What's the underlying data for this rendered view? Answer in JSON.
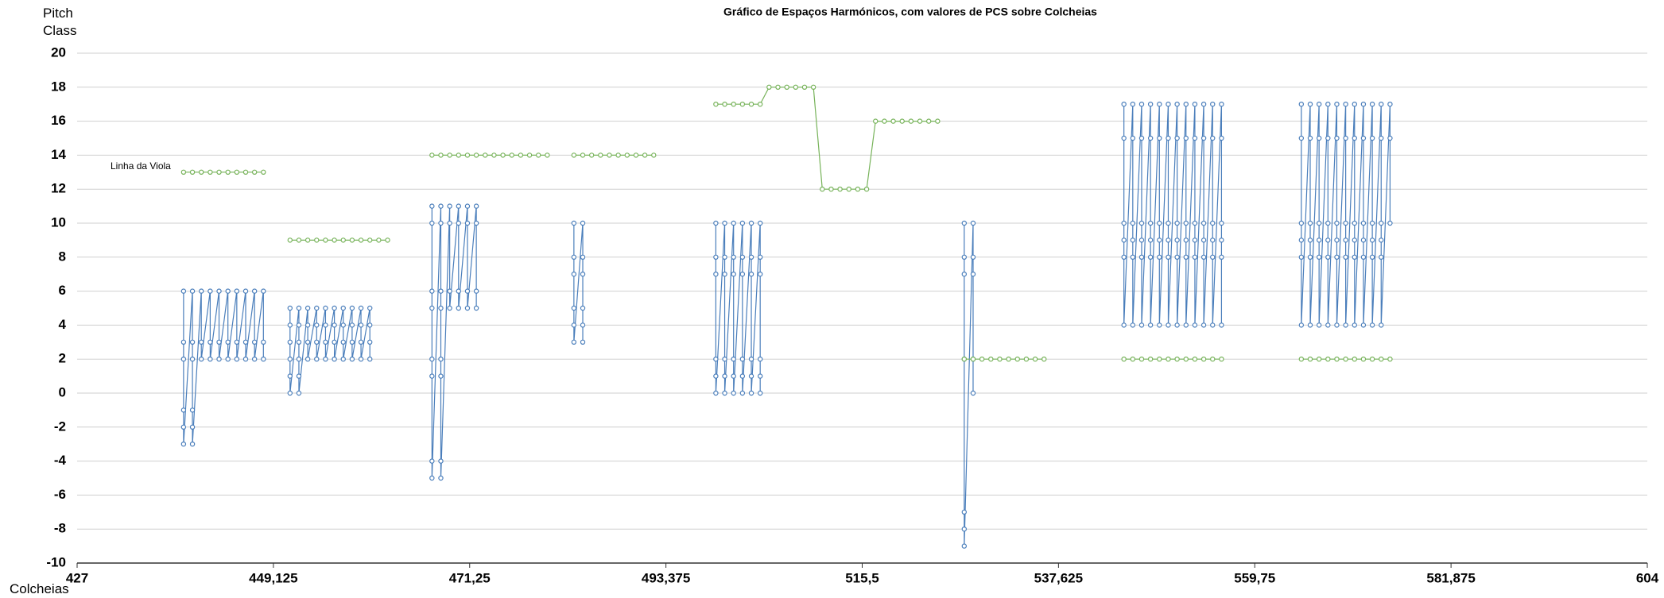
{
  "chart_data": {
    "type": "line",
    "title": "Gráfico de Espaços Harmónicos, com valores de PCS sobre Colcheias",
    "y_label": "Pitch Class",
    "x_label": "Colcheias",
    "xlim": [
      427,
      604
    ],
    "xticks": [
      427,
      {
        "value": 449.125,
        "label": "449,125"
      },
      {
        "value": 471.25,
        "label": "471,25"
      },
      {
        "value": 493.375,
        "label": "493,375"
      },
      {
        "value": 515.5,
        "label": "515,5"
      },
      {
        "value": 537.625,
        "label": "537,625"
      },
      {
        "value": 559.75,
        "label": "559,75"
      },
      {
        "value": 581.875,
        "label": "581,875"
      },
      604
    ],
    "ylim": [
      -10,
      20
    ],
    "yticks": [
      -10,
      -8,
      -6,
      -4,
      -2,
      0,
      2,
      4,
      6,
      8,
      10,
      12,
      14,
      16,
      18,
      20
    ],
    "grid": true,
    "series": [
      {
        "color": "#4a7ebb",
        "x": [
          439,
          439,
          439,
          439,
          439,
          439,
          440,
          440,
          440,
          440,
          440,
          440,
          441,
          441,
          441,
          442,
          442,
          442,
          443,
          443,
          443,
          444,
          444,
          444,
          445,
          445,
          445,
          446,
          446,
          446,
          447,
          447,
          447,
          448,
          448,
          448,
          null,
          451,
          451,
          451,
          451,
          451,
          451,
          452,
          452,
          452,
          452,
          452,
          452,
          453,
          453,
          453,
          453,
          454,
          454,
          454,
          454,
          455,
          455,
          455,
          455,
          456,
          456,
          456,
          456,
          457,
          457,
          457,
          457,
          458,
          458,
          458,
          458,
          459,
          459,
          459,
          459,
          460,
          460,
          460,
          460,
          null,
          467,
          467,
          467,
          467,
          467,
          467,
          467,
          467,
          468,
          468,
          468,
          468,
          468,
          468,
          468,
          468,
          469,
          469,
          469,
          469,
          470,
          470,
          470,
          470,
          471,
          471,
          471,
          471,
          472,
          472,
          472,
          472,
          null,
          483,
          483,
          483,
          483,
          483,
          483,
          484,
          484,
          484,
          484,
          484,
          484,
          null,
          499,
          499,
          499,
          499,
          499,
          499,
          500,
          500,
          500,
          500,
          500,
          500,
          501,
          501,
          501,
          501,
          501,
          501,
          502,
          502,
          502,
          502,
          502,
          502,
          503,
          503,
          503,
          503,
          503,
          503,
          504,
          504,
          504,
          504,
          504,
          504,
          null,
          527,
          527,
          527,
          527,
          527,
          527,
          527,
          528,
          528,
          528,
          528,
          528,
          null,
          545,
          545,
          545,
          545,
          545,
          545,
          546,
          546,
          546,
          546,
          546,
          546,
          547,
          547,
          547,
          547,
          547,
          547,
          548,
          548,
          548,
          548,
          548,
          548,
          549,
          549,
          549,
          549,
          549,
          549,
          550,
          550,
          550,
          550,
          550,
          550,
          551,
          551,
          551,
          551,
          551,
          551,
          552,
          552,
          552,
          552,
          552,
          552,
          553,
          553,
          553,
          553,
          553,
          553,
          554,
          554,
          554,
          554,
          554,
          554,
          555,
          555,
          555,
          555,
          555,
          555,
          556,
          556,
          556,
          556,
          556,
          556,
          null,
          565,
          565,
          565,
          565,
          565,
          565,
          566,
          566,
          566,
          566,
          566,
          566,
          567,
          567,
          567,
          567,
          567,
          567,
          568,
          568,
          568,
          568,
          568,
          568,
          569,
          569,
          569,
          569,
          569,
          569,
          570,
          570,
          570,
          570,
          570,
          570,
          571,
          571,
          571,
          571,
          571,
          571,
          572,
          572,
          572,
          572,
          572,
          572,
          573,
          573,
          573,
          573,
          573,
          573,
          574,
          574,
          574,
          574,
          574,
          574,
          575,
          575,
          575
        ],
        "values": [
          6,
          3,
          2,
          -1,
          -2,
          -3,
          6,
          3,
          2,
          -1,
          -2,
          -3,
          6,
          3,
          2,
          6,
          3,
          2,
          6,
          3,
          2,
          6,
          3,
          2,
          6,
          3,
          2,
          6,
          3,
          2,
          6,
          3,
          2,
          6,
          3,
          2,
          null,
          5,
          4,
          3,
          2,
          1,
          0,
          5,
          4,
          3,
          2,
          1,
          0,
          5,
          4,
          3,
          2,
          5,
          4,
          3,
          2,
          5,
          4,
          3,
          2,
          5,
          4,
          3,
          2,
          5,
          4,
          3,
          2,
          5,
          4,
          3,
          2,
          5,
          4,
          3,
          2,
          5,
          4,
          3,
          2,
          null,
          11,
          10,
          6,
          5,
          2,
          1,
          -4,
          -5,
          11,
          10,
          6,
          5,
          2,
          1,
          -4,
          -5,
          11,
          10,
          6,
          5,
          11,
          10,
          6,
          5,
          11,
          10,
          6,
          5,
          11,
          10,
          6,
          5,
          null,
          10,
          8,
          7,
          5,
          4,
          3,
          10,
          8,
          7,
          5,
          4,
          3,
          null,
          10,
          8,
          7,
          2,
          1,
          0,
          10,
          8,
          7,
          2,
          1,
          0,
          10,
          8,
          7,
          2,
          1,
          0,
          10,
          8,
          7,
          2,
          1,
          0,
          10,
          8,
          7,
          2,
          1,
          0,
          10,
          8,
          7,
          2,
          1,
          0,
          null,
          10,
          8,
          7,
          2,
          -7,
          -8,
          -9,
          10,
          8,
          7,
          2,
          0,
          null,
          17,
          15,
          10,
          9,
          8,
          4,
          17,
          15,
          10,
          9,
          8,
          4,
          17,
          15,
          10,
          9,
          8,
          4,
          17,
          15,
          10,
          9,
          8,
          4,
          17,
          15,
          10,
          9,
          8,
          4,
          17,
          15,
          10,
          9,
          8,
          4,
          17,
          15,
          10,
          9,
          8,
          4,
          17,
          15,
          10,
          9,
          8,
          4,
          17,
          15,
          10,
          9,
          8,
          4,
          17,
          15,
          10,
          9,
          8,
          4,
          17,
          15,
          10,
          9,
          8,
          4,
          17,
          15,
          10,
          9,
          8,
          4,
          null,
          17,
          15,
          10,
          9,
          8,
          4,
          17,
          15,
          10,
          9,
          8,
          4,
          17,
          15,
          10,
          9,
          8,
          4,
          17,
          15,
          10,
          9,
          8,
          4,
          17,
          15,
          10,
          9,
          8,
          4,
          17,
          15,
          10,
          9,
          8,
          4,
          17,
          15,
          10,
          9,
          8,
          4,
          17,
          15,
          10,
          9,
          8,
          4,
          17,
          15,
          10,
          9,
          8,
          4,
          17,
          15,
          10,
          9,
          8,
          4,
          17,
          15,
          10
        ]
      },
      {
        "name": "Linha da Viola",
        "color": "#77b35a",
        "x": [
          439,
          440,
          441,
          442,
          443,
          444,
          445,
          446,
          447,
          448,
          null,
          451,
          452,
          453,
          454,
          455,
          456,
          457,
          458,
          459,
          460,
          461,
          462,
          null,
          467,
          468,
          469,
          470,
          471,
          472,
          473,
          474,
          475,
          476,
          477,
          478,
          479,
          480,
          null,
          483,
          484,
          485,
          486,
          487,
          488,
          489,
          490,
          491,
          492,
          null,
          499,
          500,
          501,
          502,
          503,
          504,
          505,
          506,
          507,
          508,
          509,
          510,
          511,
          512,
          513,
          514,
          515,
          516,
          517,
          518,
          519,
          520,
          521,
          522,
          523,
          524,
          null,
          527,
          528,
          529,
          530,
          531,
          532,
          533,
          534,
          535,
          536,
          null,
          545,
          546,
          547,
          548,
          549,
          550,
          551,
          552,
          553,
          554,
          555,
          556,
          null,
          565,
          566,
          567,
          568,
          569,
          570,
          571,
          572,
          573,
          574,
          575
        ],
        "values": [
          13,
          13,
          13,
          13,
          13,
          13,
          13,
          13,
          13,
          13,
          null,
          9,
          9,
          9,
          9,
          9,
          9,
          9,
          9,
          9,
          9,
          9,
          9,
          null,
          14,
          14,
          14,
          14,
          14,
          14,
          14,
          14,
          14,
          14,
          14,
          14,
          14,
          14,
          null,
          14,
          14,
          14,
          14,
          14,
          14,
          14,
          14,
          14,
          14,
          null,
          17,
          17,
          17,
          17,
          17,
          17,
          18,
          18,
          18,
          18,
          18,
          18,
          12,
          12,
          12,
          12,
          12,
          12,
          16,
          16,
          16,
          16,
          16,
          16,
          16,
          16,
          null,
          2,
          2,
          2,
          2,
          2,
          2,
          2,
          2,
          2,
          2,
          null,
          2,
          2,
          2,
          2,
          2,
          2,
          2,
          2,
          2,
          2,
          2,
          2,
          null,
          2,
          2,
          2,
          2,
          2,
          2,
          2,
          2,
          2,
          2,
          2
        ]
      }
    ]
  }
}
